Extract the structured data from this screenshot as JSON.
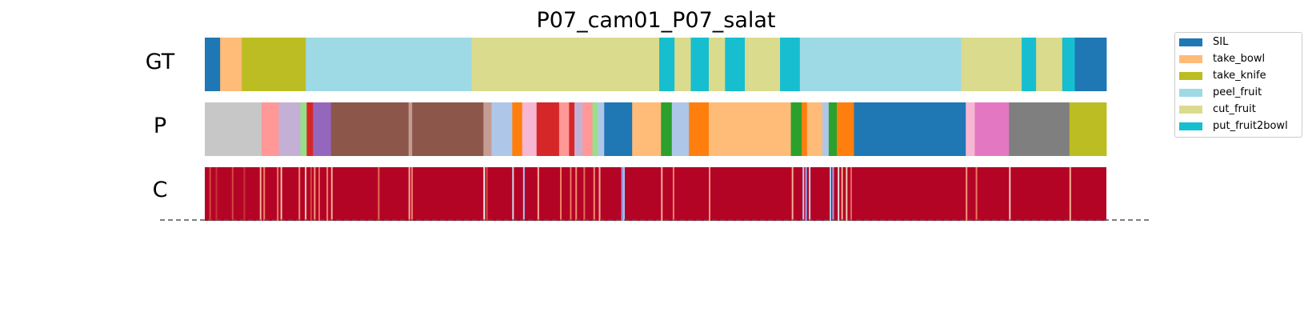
{
  "chart_data": {
    "type": "segmentation",
    "title": "P07_cam01_P07_salat",
    "rows": [
      {
        "label": "GT",
        "segments": [
          {
            "start": 0,
            "end": 1.7,
            "color": "#1f77b4",
            "action": "SIL"
          },
          {
            "start": 1.7,
            "end": 4.1,
            "color": "#ffbb78",
            "action": "take_bowl"
          },
          {
            "start": 4.1,
            "end": 11.2,
            "color": "#bcbd22",
            "action": "take_knife"
          },
          {
            "start": 11.2,
            "end": 29.6,
            "color": "#9edae5",
            "action": "peel_fruit"
          },
          {
            "start": 29.6,
            "end": 50.4,
            "color": "#dbdb8d",
            "action": "cut_fruit"
          },
          {
            "start": 50.4,
            "end": 52.1,
            "color": "#17becf",
            "action": "put_fruit2bowl"
          },
          {
            "start": 52.1,
            "end": 53.9,
            "color": "#dbdb8d",
            "action": "cut_fruit"
          },
          {
            "start": 53.9,
            "end": 55.9,
            "color": "#17becf",
            "action": "put_fruit2bowl"
          },
          {
            "start": 55.9,
            "end": 57.7,
            "color": "#dbdb8d",
            "action": "cut_fruit"
          },
          {
            "start": 57.7,
            "end": 59.9,
            "color": "#17becf",
            "action": "put_fruit2bowl"
          },
          {
            "start": 59.9,
            "end": 63.8,
            "color": "#dbdb8d",
            "action": "cut_fruit"
          },
          {
            "start": 63.8,
            "end": 66.0,
            "color": "#17becf",
            "action": "put_fruit2bowl"
          },
          {
            "start": 66.0,
            "end": 83.9,
            "color": "#9edae5",
            "action": "peel_fruit"
          },
          {
            "start": 83.9,
            "end": 90.6,
            "color": "#dbdb8d",
            "action": "cut_fruit"
          },
          {
            "start": 90.6,
            "end": 92.2,
            "color": "#17becf",
            "action": "put_fruit2bowl"
          },
          {
            "start": 92.2,
            "end": 95.1,
            "color": "#dbdb8d",
            "action": "cut_fruit"
          },
          {
            "start": 95.1,
            "end": 96.5,
            "color": "#17becf",
            "action": "put_fruit2bowl"
          },
          {
            "start": 96.5,
            "end": 100,
            "color": "#1f77b4",
            "action": "SIL"
          }
        ]
      },
      {
        "label": "P",
        "segments": [
          {
            "start": 0,
            "end": 6.3,
            "color": "#c7c7c7"
          },
          {
            "start": 6.3,
            "end": 8.2,
            "color": "#ff9896"
          },
          {
            "start": 8.2,
            "end": 10.6,
            "color": "#c5b0d5"
          },
          {
            "start": 10.6,
            "end": 11.3,
            "color": "#98df8a"
          },
          {
            "start": 11.3,
            "end": 12.0,
            "color": "#d62728"
          },
          {
            "start": 12.0,
            "end": 14.0,
            "color": "#9467bd"
          },
          {
            "start": 14.0,
            "end": 22.6,
            "color": "#8c564b"
          },
          {
            "start": 22.6,
            "end": 23.0,
            "color": "#c49c94"
          },
          {
            "start": 23.0,
            "end": 30.9,
            "color": "#8c564b"
          },
          {
            "start": 30.9,
            "end": 31.8,
            "color": "#c49c94"
          },
          {
            "start": 31.8,
            "end": 34.1,
            "color": "#aec7e8"
          },
          {
            "start": 34.1,
            "end": 35.2,
            "color": "#ff7f0e"
          },
          {
            "start": 35.2,
            "end": 36.8,
            "color": "#f7b6d2"
          },
          {
            "start": 36.8,
            "end": 39.3,
            "color": "#d62728"
          },
          {
            "start": 39.3,
            "end": 40.4,
            "color": "#ff9896"
          },
          {
            "start": 40.4,
            "end": 41.0,
            "color": "#d62728"
          },
          {
            "start": 41.0,
            "end": 41.9,
            "color": "#c5b0d5"
          },
          {
            "start": 41.9,
            "end": 43.0,
            "color": "#ff9896"
          },
          {
            "start": 43.0,
            "end": 43.6,
            "color": "#98df8a"
          },
          {
            "start": 43.6,
            "end": 44.3,
            "color": "#aec7e8"
          },
          {
            "start": 44.3,
            "end": 47.4,
            "color": "#1f77b4"
          },
          {
            "start": 47.4,
            "end": 50.6,
            "color": "#ffbb78"
          },
          {
            "start": 50.6,
            "end": 51.8,
            "color": "#2ca02c"
          },
          {
            "start": 51.8,
            "end": 53.7,
            "color": "#aec7e8"
          },
          {
            "start": 53.7,
            "end": 55.9,
            "color": "#ff7f0e"
          },
          {
            "start": 55.9,
            "end": 65.0,
            "color": "#ffbb78"
          },
          {
            "start": 65.0,
            "end": 66.2,
            "color": "#2ca02c"
          },
          {
            "start": 66.2,
            "end": 66.8,
            "color": "#ff7f0e"
          },
          {
            "start": 66.8,
            "end": 68.5,
            "color": "#ffbb78"
          },
          {
            "start": 68.5,
            "end": 69.2,
            "color": "#aec7e8"
          },
          {
            "start": 69.2,
            "end": 70.1,
            "color": "#2ca02c"
          },
          {
            "start": 70.1,
            "end": 72.0,
            "color": "#ff7f0e"
          },
          {
            "start": 72.0,
            "end": 84.4,
            "color": "#1f77b4"
          },
          {
            "start": 84.4,
            "end": 85.4,
            "color": "#f7b6d2"
          },
          {
            "start": 85.4,
            "end": 89.2,
            "color": "#e377c2"
          },
          {
            "start": 89.2,
            "end": 95.9,
            "color": "#7f7f7f"
          },
          {
            "start": 95.9,
            "end": 100,
            "color": "#bcbd22"
          }
        ]
      },
      {
        "label": "C",
        "base_color": "#b40426",
        "marks": [
          {
            "pos": 0.5,
            "color": "#d1493f"
          },
          {
            "pos": 1.2,
            "color": "#c53334"
          },
          {
            "pos": 3.0,
            "color": "#d1493f"
          },
          {
            "pos": 4.3,
            "color": "#c53334"
          },
          {
            "pos": 6.1,
            "color": "#f7b093"
          },
          {
            "pos": 6.5,
            "color": "#ee8468"
          },
          {
            "pos": 8.0,
            "color": "#e97a5f"
          },
          {
            "pos": 8.4,
            "color": "#f5c4ac"
          },
          {
            "pos": 10.4,
            "color": "#f08b6e"
          },
          {
            "pos": 11.1,
            "color": "#f2cbb7"
          },
          {
            "pos": 11.7,
            "color": "#d1493f"
          },
          {
            "pos": 12.1,
            "color": "#f4987a"
          },
          {
            "pos": 12.6,
            "color": "#e36c55"
          },
          {
            "pos": 13.5,
            "color": "#ee8468"
          },
          {
            "pos": 14.0,
            "color": "#f7b093"
          },
          {
            "pos": 19.2,
            "color": "#e36c55"
          },
          {
            "pos": 22.6,
            "color": "#f7b093"
          },
          {
            "pos": 22.9,
            "color": "#ee8468"
          },
          {
            "pos": 30.9,
            "color": "#ebebeb"
          },
          {
            "pos": 31.2,
            "color": "#d1493f"
          },
          {
            "pos": 34.1,
            "color": "#cfdaea"
          },
          {
            "pos": 35.3,
            "color": "#aac7fd"
          },
          {
            "pos": 36.9,
            "color": "#f7b093"
          },
          {
            "pos": 39.4,
            "color": "#ee8468"
          },
          {
            "pos": 40.5,
            "color": "#e97a5f"
          },
          {
            "pos": 41.1,
            "color": "#f08b6e"
          },
          {
            "pos": 42.0,
            "color": "#e36c55"
          },
          {
            "pos": 43.1,
            "color": "#f08b6e"
          },
          {
            "pos": 43.7,
            "color": "#f7b093"
          },
          {
            "pos": 46.2,
            "color": "#8db0fe"
          },
          {
            "pos": 46.4,
            "color": "#aac7fd"
          },
          {
            "pos": 50.6,
            "color": "#f7b093"
          },
          {
            "pos": 51.9,
            "color": "#ee8468"
          },
          {
            "pos": 55.9,
            "color": "#f4987a"
          },
          {
            "pos": 65.1,
            "color": "#f7b093"
          },
          {
            "pos": 66.3,
            "color": "#b3cdfb"
          },
          {
            "pos": 66.6,
            "color": "#8db0fe"
          },
          {
            "pos": 67.0,
            "color": "#cfdaea"
          },
          {
            "pos": 69.3,
            "color": "#aac7fd"
          },
          {
            "pos": 69.6,
            "color": "#8db0fe"
          },
          {
            "pos": 70.2,
            "color": "#dddcdc"
          },
          {
            "pos": 70.6,
            "color": "#f7b093"
          },
          {
            "pos": 71.1,
            "color": "#f2cbb7"
          },
          {
            "pos": 71.6,
            "color": "#e36c55"
          },
          {
            "pos": 84.4,
            "color": "#f4987a"
          },
          {
            "pos": 85.5,
            "color": "#e97a5f"
          },
          {
            "pos": 89.2,
            "color": "#f2cbb7"
          },
          {
            "pos": 95.9,
            "color": "#f7b093"
          }
        ]
      }
    ],
    "legend": [
      {
        "label": "SIL",
        "color": "#1f77b4"
      },
      {
        "label": "take_bowl",
        "color": "#ffbb78"
      },
      {
        "label": "take_knife",
        "color": "#bcbd22"
      },
      {
        "label": "peel_fruit",
        "color": "#9edae5"
      },
      {
        "label": "cut_fruit",
        "color": "#dbdb8d"
      },
      {
        "label": "put_fruit2bowl",
        "color": "#17becf"
      }
    ],
    "legend_placement": "upper right, clipped by figure edge",
    "x_range": [
      0,
      100
    ],
    "dashed_baseline": true,
    "grid": false
  }
}
